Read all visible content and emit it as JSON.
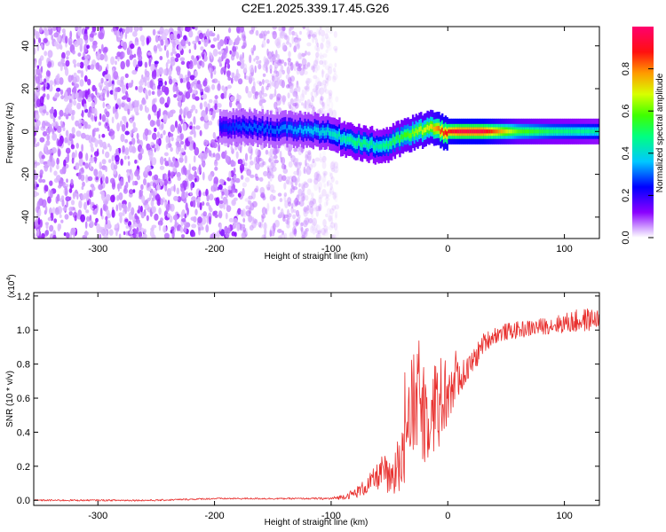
{
  "title": "C2E1.2025.339.17.45.G26",
  "colors": {
    "snr_line": "#e8302e",
    "background": "#ffffff",
    "axis": "#000000",
    "spectrogram_noise": "#7a1ee6",
    "spectrogram_peak": "#e81010"
  },
  "chart_data": [
    {
      "type": "heatmap",
      "name": "spectrogram",
      "xlabel": "Height of straight line (km)",
      "ylabel": "Frequency (Hz)",
      "xlim": [
        -355,
        130
      ],
      "ylim": [
        -50,
        49
      ],
      "x_ticks": [
        -300,
        -200,
        -100,
        0,
        100
      ],
      "x_tick_labels": [
        "-300",
        "-200",
        "-100",
        "0",
        "100"
      ],
      "y_ticks": [
        -40,
        -20,
        0,
        20,
        40
      ],
      "y_tick_labels": [
        "-40",
        "-20",
        "0",
        "20",
        "40"
      ],
      "colorbar": {
        "label": "Normalized spectral amplitude",
        "range": [
          0,
          1
        ],
        "ticks": [
          0.0,
          0.2,
          0.4,
          0.6,
          0.8
        ],
        "tick_labels": [
          "0.0",
          "0.2",
          "0.4",
          "0.6",
          "0.8"
        ],
        "colormap": "rainbow (white to violet to blue to cyan to green to yellow to red to magenta)"
      },
      "description_features": {
        "noise_region_x": [
          -355,
          -95
        ],
        "dense_noise_x": [
          -355,
          -175
        ],
        "signal_track": [
          {
            "x": -195,
            "freq": 2,
            "amp": 0.25
          },
          {
            "x": -170,
            "freq": 2,
            "amp": 0.3
          },
          {
            "x": -150,
            "freq": 1,
            "amp": 0.3
          },
          {
            "x": -125,
            "freq": 1,
            "amp": 0.35
          },
          {
            "x": -105,
            "freq": 0,
            "amp": 0.4
          },
          {
            "x": -90,
            "freq": -3,
            "amp": 0.45
          },
          {
            "x": -75,
            "freq": -5,
            "amp": 0.5
          },
          {
            "x": -60,
            "freq": -7,
            "amp": 0.45
          },
          {
            "x": -50,
            "freq": -6,
            "amp": 0.5
          },
          {
            "x": -40,
            "freq": -3,
            "amp": 0.55
          },
          {
            "x": -25,
            "freq": 0,
            "amp": 0.65
          },
          {
            "x": -15,
            "freq": 2,
            "amp": 0.7
          },
          {
            "x": -5,
            "freq": 0,
            "amp": 0.85
          },
          {
            "x": 10,
            "freq": 0,
            "amp": 0.95
          },
          {
            "x": 30,
            "freq": 0,
            "amp": 0.95
          },
          {
            "x": 60,
            "freq": 0,
            "amp": 0.6
          },
          {
            "x": 90,
            "freq": 0,
            "amp": 0.5
          },
          {
            "x": 130,
            "freq": 0,
            "amp": 0.45
          }
        ]
      }
    },
    {
      "type": "line",
      "name": "snr",
      "xlabel": "Height of straight line (km)",
      "ylabel": "SNR (10 * v/v)",
      "y_scale_note": "(x10",
      "y_scale_exponent": "4",
      "y_scale_suffix": ")",
      "xlim": [
        -355,
        130
      ],
      "ylim": [
        -0.03,
        1.22
      ],
      "x_ticks": [
        -300,
        -200,
        -100,
        0,
        100
      ],
      "x_tick_labels": [
        "-300",
        "-200",
        "-100",
        "0",
        "100"
      ],
      "y_ticks": [
        0.0,
        0.2,
        0.4,
        0.6,
        0.8,
        1.0,
        1.2
      ],
      "y_tick_labels": [
        "0.0",
        "0.2",
        "0.4",
        "0.6",
        "0.8",
        "1.0",
        "1.2"
      ],
      "series": [
        {
          "name": "SNR",
          "x": [
            -355,
            -300,
            -250,
            -200,
            -150,
            -120,
            -100,
            -90,
            -80,
            -70,
            -60,
            -55,
            -50,
            -45,
            -40,
            -35,
            -30,
            -25,
            -20,
            -15,
            -10,
            -5,
            0,
            5,
            10,
            15,
            20,
            25,
            30,
            40,
            50,
            60,
            70,
            80,
            90,
            100,
            110,
            120,
            130
          ],
          "values": [
            0.0,
            0.0,
            0.0,
            0.01,
            0.01,
            0.01,
            0.01,
            0.02,
            0.04,
            0.08,
            0.14,
            0.18,
            0.1,
            0.15,
            0.3,
            0.45,
            0.55,
            0.6,
            0.5,
            0.55,
            0.55,
            0.6,
            0.62,
            0.68,
            0.72,
            0.75,
            0.8,
            0.85,
            0.92,
            0.97,
            0.99,
            1.0,
            1.01,
            1.02,
            1.03,
            1.04,
            1.05,
            1.06,
            1.07
          ],
          "noise_amplitude": [
            0.005,
            0.005,
            0.005,
            0.005,
            0.005,
            0.005,
            0.008,
            0.015,
            0.03,
            0.05,
            0.08,
            0.1,
            0.12,
            0.15,
            0.25,
            0.3,
            0.3,
            0.35,
            0.3,
            0.3,
            0.3,
            0.25,
            0.2,
            0.15,
            0.1,
            0.08,
            0.07,
            0.07,
            0.06,
            0.05,
            0.05,
            0.05,
            0.05,
            0.05,
            0.05,
            0.06,
            0.07,
            0.07,
            0.05
          ]
        }
      ]
    }
  ]
}
